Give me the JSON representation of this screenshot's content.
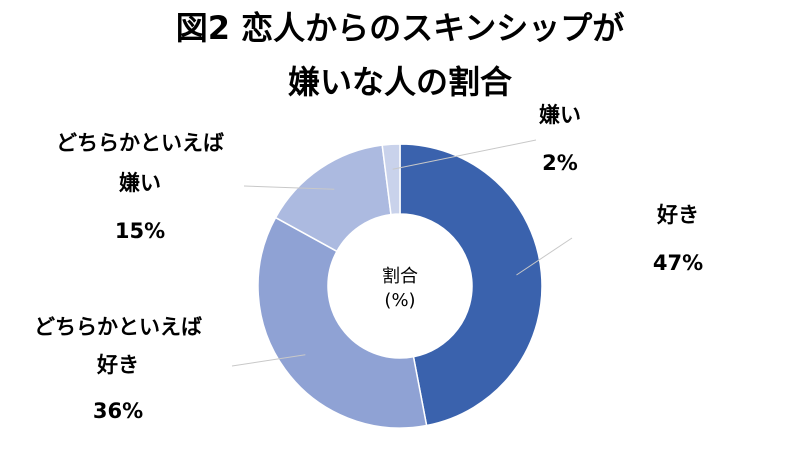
{
  "chart_data": {
    "type": "pie",
    "title_lines": [
      "図2 恋人からのスキンシップが",
      "嫌いな人の割合"
    ],
    "center_label": [
      "割合",
      "(%)"
    ],
    "categories": [
      "好き",
      "どちらかといえば好き",
      "どちらかといえば嫌い",
      "嫌い"
    ],
    "values": [
      47,
      36,
      15,
      2
    ],
    "labels": [
      {
        "name_lines": [
          "好き"
        ],
        "pct": "47%"
      },
      {
        "name_lines": [
          "どちらかといえば",
          "好き"
        ],
        "pct": "36%"
      },
      {
        "name_lines": [
          "どちらかといえば",
          "嫌い"
        ],
        "pct": "15%"
      },
      {
        "name_lines": [
          "嫌い"
        ],
        "pct": "2%"
      }
    ],
    "colors": [
      "#3A62AD",
      "#8FA2D4",
      "#ACBAE0",
      "#C9D2EB"
    ],
    "legend": "none"
  }
}
